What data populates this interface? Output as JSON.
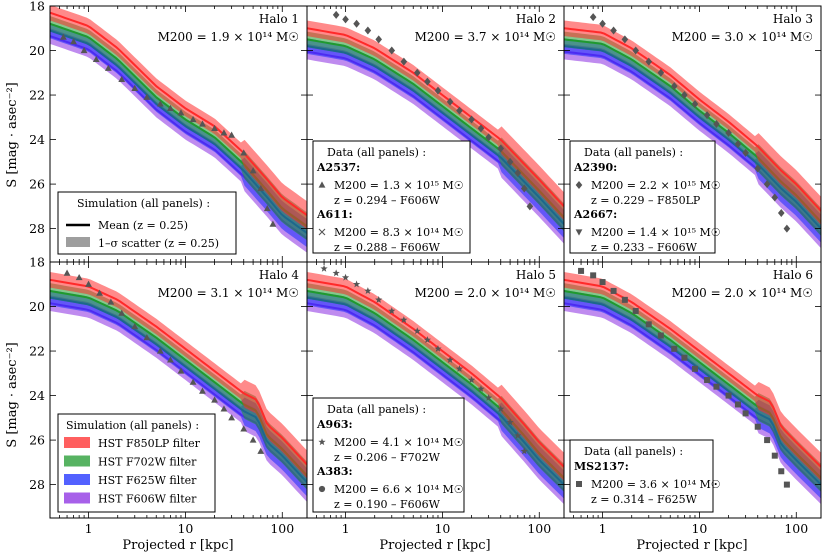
{
  "figure": {
    "xlabel": "Projected r [kpc]",
    "ylabel": "S [mag · asec⁻²]"
  },
  "axes": {
    "xscale": "log",
    "xlim": [
      0.4,
      180
    ],
    "ylim": [
      29.5,
      18
    ],
    "x_ticks": [
      1,
      10,
      100
    ],
    "x_tick_labels": [
      "1",
      "10",
      "100"
    ],
    "y_ticks": [
      18,
      20,
      22,
      24,
      26,
      28
    ],
    "y_tick_labels": [
      "18",
      "20",
      "22",
      "24",
      "26",
      "28"
    ]
  },
  "colors": {
    "F850LP": "#ff2a2a",
    "F702W": "#1f9a2e",
    "F625W": "#1a2cff",
    "F606W": "#8a2be2",
    "marker": "#555555"
  },
  "simulation_offsets": {
    "F850LP": 0.0,
    "F702W": 0.5,
    "F625W": 0.8,
    "F606W": 1.05
  },
  "chart_data": [
    {
      "type": "line",
      "halo_label": "Halo 1",
      "mass_label": "M200 = 1.9 × 10¹⁴ M☉",
      "sim_F850LP": [
        [
          0.4,
          18.3
        ],
        [
          1,
          18.9
        ],
        [
          2,
          19.9
        ],
        [
          5,
          21.6
        ],
        [
          10,
          22.6
        ],
        [
          20,
          23.4
        ],
        [
          40,
          24.6
        ],
        [
          70,
          25.8
        ],
        [
          100,
          26.6
        ],
        [
          180,
          27.4
        ]
      ],
      "scatter_half_width": 0.35,
      "markers": [
        {
          "x": 0.55,
          "y": 19.4
        },
        {
          "x": 0.7,
          "y": 19.6
        },
        {
          "x": 0.9,
          "y": 20.0
        },
        {
          "x": 1.2,
          "y": 20.4
        },
        {
          "x": 1.6,
          "y": 20.8
        },
        {
          "x": 2.2,
          "y": 21.3
        },
        {
          "x": 3,
          "y": 21.7
        },
        {
          "x": 4,
          "y": 22.1
        },
        {
          "x": 5.5,
          "y": 22.4
        },
        {
          "x": 7,
          "y": 22.6
        },
        {
          "x": 9,
          "y": 22.8
        },
        {
          "x": 12,
          "y": 23.1
        },
        {
          "x": 15,
          "y": 23.3
        },
        {
          "x": 20,
          "y": 23.5
        },
        {
          "x": 25,
          "y": 23.7
        },
        {
          "x": 30,
          "y": 23.8
        },
        {
          "x": 40,
          "y": 24.6
        },
        {
          "x": 50,
          "y": 25.4
        },
        {
          "x": 60,
          "y": 26.2
        },
        {
          "x": 70,
          "y": 27.1
        },
        {
          "x": 80,
          "y": 27.8
        }
      ]
    },
    {
      "type": "line",
      "halo_label": "Halo 2",
      "mass_label": "M200 = 3.7 × 10¹⁴ M☉",
      "sim_F850LP": [
        [
          0.4,
          19.0
        ],
        [
          1,
          19.3
        ],
        [
          2,
          19.9
        ],
        [
          5,
          21.0
        ],
        [
          10,
          22.0
        ],
        [
          20,
          23.0
        ],
        [
          40,
          24.0
        ],
        [
          70,
          25.1
        ],
        [
          100,
          25.8
        ],
        [
          180,
          27.0
        ]
      ],
      "scatter_half_width": 0.35,
      "markers": [
        {
          "x": 0.8,
          "y": 18.4
        },
        {
          "x": 1,
          "y": 18.6
        },
        {
          "x": 1.3,
          "y": 18.8
        },
        {
          "x": 1.7,
          "y": 19.1
        },
        {
          "x": 2.2,
          "y": 19.5
        },
        {
          "x": 3,
          "y": 20.0
        },
        {
          "x": 4,
          "y": 20.5
        },
        {
          "x": 5.5,
          "y": 21.0
        },
        {
          "x": 7,
          "y": 21.4
        },
        {
          "x": 9,
          "y": 21.8
        },
        {
          "x": 12,
          "y": 22.3
        },
        {
          "x": 15,
          "y": 22.7
        },
        {
          "x": 20,
          "y": 23.1
        },
        {
          "x": 25,
          "y": 23.5
        },
        {
          "x": 30,
          "y": 23.9
        },
        {
          "x": 40,
          "y": 24.4
        },
        {
          "x": 50,
          "y": 25.0
        },
        {
          "x": 60,
          "y": 25.5
        },
        {
          "x": 70,
          "y": 26.2
        },
        {
          "x": 80,
          "y": 27.0
        }
      ]
    },
    {
      "type": "line",
      "halo_label": "Halo 3",
      "mass_label": "M200 = 3.0 × 10¹⁴ M☉",
      "sim_F850LP": [
        [
          0.4,
          19.0
        ],
        [
          1,
          19.2
        ],
        [
          2,
          19.9
        ],
        [
          5,
          21.1
        ],
        [
          10,
          22.2
        ],
        [
          20,
          23.2
        ],
        [
          40,
          24.3
        ],
        [
          70,
          25.4
        ],
        [
          100,
          26.0
        ],
        [
          180,
          27.2
        ]
      ],
      "scatter_half_width": 0.35,
      "markers": [
        {
          "x": 0.8,
          "y": 18.5
        },
        {
          "x": 1,
          "y": 18.8
        },
        {
          "x": 1.3,
          "y": 19.1
        },
        {
          "x": 1.7,
          "y": 19.5
        },
        {
          "x": 2.2,
          "y": 20.0
        },
        {
          "x": 3,
          "y": 20.5
        },
        {
          "x": 4,
          "y": 21.0
        },
        {
          "x": 5.5,
          "y": 21.6
        },
        {
          "x": 7,
          "y": 22.0
        },
        {
          "x": 9,
          "y": 22.4
        },
        {
          "x": 12,
          "y": 22.9
        },
        {
          "x": 15,
          "y": 23.3
        },
        {
          "x": 20,
          "y": 23.7
        },
        {
          "x": 25,
          "y": 24.2
        },
        {
          "x": 30,
          "y": 24.6
        },
        {
          "x": 40,
          "y": 25.3
        },
        {
          "x": 50,
          "y": 26.0
        },
        {
          "x": 60,
          "y": 26.6
        },
        {
          "x": 70,
          "y": 27.3
        },
        {
          "x": 80,
          "y": 28.0
        }
      ]
    },
    {
      "type": "line",
      "halo_label": "Halo 4",
      "mass_label": "M200 = 3.1 × 10¹⁴ M☉",
      "sim_F850LP": [
        [
          0.4,
          18.8
        ],
        [
          1,
          19.1
        ],
        [
          2,
          19.7
        ],
        [
          5,
          20.9
        ],
        [
          10,
          21.9
        ],
        [
          20,
          22.9
        ],
        [
          40,
          23.9
        ],
        [
          55,
          24.2
        ],
        [
          70,
          25.3
        ],
        [
          100,
          25.9
        ],
        [
          180,
          27.1
        ]
      ],
      "scatter_half_width": 0.35,
      "markers": [
        {
          "x": 0.6,
          "y": 18.5
        },
        {
          "x": 0.8,
          "y": 18.7
        },
        {
          "x": 1,
          "y": 19.0
        },
        {
          "x": 1.3,
          "y": 19.4
        },
        {
          "x": 1.7,
          "y": 19.8
        },
        {
          "x": 2.2,
          "y": 20.3
        },
        {
          "x": 3,
          "y": 20.9
        },
        {
          "x": 4,
          "y": 21.4
        },
        {
          "x": 5.5,
          "y": 22.0
        },
        {
          "x": 7,
          "y": 22.4
        },
        {
          "x": 9,
          "y": 22.9
        },
        {
          "x": 12,
          "y": 23.4
        },
        {
          "x": 15,
          "y": 23.8
        },
        {
          "x": 20,
          "y": 24.2
        },
        {
          "x": 25,
          "y": 24.6
        },
        {
          "x": 30,
          "y": 25.0
        },
        {
          "x": 40,
          "y": 25.5
        },
        {
          "x": 50,
          "y": 26.0
        },
        {
          "x": 60,
          "y": 26.5
        }
      ]
    },
    {
      "type": "line",
      "halo_label": "Halo 5",
      "mass_label": "M200 = 2.0 × 10¹⁴ M☉",
      "sim_F850LP": [
        [
          0.4,
          18.8
        ],
        [
          1,
          19.1
        ],
        [
          2,
          19.8
        ],
        [
          5,
          21.0
        ],
        [
          10,
          22.0
        ],
        [
          20,
          23.0
        ],
        [
          40,
          24.1
        ],
        [
          70,
          25.3
        ],
        [
          100,
          26.1
        ],
        [
          180,
          27.2
        ]
      ],
      "scatter_half_width": 0.35,
      "markers": [
        {
          "x": 0.6,
          "y": 18.3
        },
        {
          "x": 0.8,
          "y": 18.5
        },
        {
          "x": 1,
          "y": 18.7
        },
        {
          "x": 1.3,
          "y": 19.0
        },
        {
          "x": 1.7,
          "y": 19.3
        },
        {
          "x": 2.2,
          "y": 19.7
        },
        {
          "x": 3,
          "y": 20.2
        },
        {
          "x": 4,
          "y": 20.6
        },
        {
          "x": 5.5,
          "y": 21.1
        },
        {
          "x": 7,
          "y": 21.5
        },
        {
          "x": 9,
          "y": 21.9
        },
        {
          "x": 12,
          "y": 22.4
        },
        {
          "x": 15,
          "y": 22.8
        },
        {
          "x": 20,
          "y": 23.3
        },
        {
          "x": 25,
          "y": 23.7
        },
        {
          "x": 30,
          "y": 24.1
        },
        {
          "x": 40,
          "y": 24.6
        },
        {
          "x": 50,
          "y": 25.2
        },
        {
          "x": 60,
          "y": 25.8
        },
        {
          "x": 70,
          "y": 26.5
        }
      ]
    },
    {
      "type": "line",
      "halo_label": "Halo 6",
      "mass_label": "M200 = 2.0 × 10¹⁴ M☉",
      "sim_F850LP": [
        [
          0.4,
          18.8
        ],
        [
          1,
          19.1
        ],
        [
          2,
          19.8
        ],
        [
          5,
          21.0
        ],
        [
          10,
          22.0
        ],
        [
          20,
          23.0
        ],
        [
          40,
          24.0
        ],
        [
          55,
          24.3
        ],
        [
          70,
          25.4
        ],
        [
          100,
          26.1
        ],
        [
          180,
          27.2
        ]
      ],
      "scatter_half_width": 0.35,
      "markers": [
        {
          "x": 0.6,
          "y": 18.4
        },
        {
          "x": 0.8,
          "y": 18.6
        },
        {
          "x": 1,
          "y": 18.9
        },
        {
          "x": 1.3,
          "y": 19.3
        },
        {
          "x": 1.7,
          "y": 19.7
        },
        {
          "x": 2.2,
          "y": 20.2
        },
        {
          "x": 3,
          "y": 20.8
        },
        {
          "x": 4,
          "y": 21.3
        },
        {
          "x": 5.5,
          "y": 21.9
        },
        {
          "x": 7,
          "y": 22.3
        },
        {
          "x": 9,
          "y": 22.8
        },
        {
          "x": 12,
          "y": 23.3
        },
        {
          "x": 15,
          "y": 23.6
        },
        {
          "x": 20,
          "y": 24.0
        },
        {
          "x": 25,
          "y": 24.4
        },
        {
          "x": 30,
          "y": 24.8
        },
        {
          "x": 40,
          "y": 25.4
        },
        {
          "x": 50,
          "y": 26.0
        },
        {
          "x": 60,
          "y": 26.7
        },
        {
          "x": 70,
          "y": 27.4
        },
        {
          "x": 80,
          "y": 28.0
        }
      ]
    }
  ],
  "legend_sim_mean": {
    "title": "Simulation (all panels) :",
    "mean": "Mean (z = 0.25)",
    "scatter": "1–σ scatter (z = 0.25)"
  },
  "legend_filters": {
    "title": "Simulation (all panels) :",
    "items": [
      "HST F850LP filter",
      "HST F702W filter",
      "HST F625W filter",
      "HST F606W filter"
    ]
  },
  "data_legends": [
    {
      "title": "Data (all panels) :",
      "clusters": [
        {
          "name": "A2537:",
          "mass": "M200 = 1.3 × 10¹⁵ M☉",
          "zline": "z = 0.294  –  F606W",
          "marker": "triangle-up"
        },
        {
          "name": "A611:",
          "mass": "M200 = 8.3 × 10¹⁴ M☉",
          "zline": "z = 0.288  –  F606W",
          "marker": "cross"
        }
      ]
    },
    {
      "title": "Data (all panels) :",
      "clusters": [
        {
          "name": "A2390:",
          "mass": "M200 = 2.2 × 10¹⁵ M☉",
          "zline": "z = 0.229  –  F850LP",
          "marker": "diamond"
        },
        {
          "name": "A2667:",
          "mass": "M200 = 1.4 × 10¹⁵ M☉",
          "zline": "z = 0.233  –  F606W",
          "marker": "triangle-down"
        }
      ]
    },
    {
      "title": "Data (all panels) :",
      "clusters": [
        {
          "name": "A963:",
          "mass": "M200 = 4.1 × 10¹⁴ M☉",
          "zline": "z = 0.206  –  F702W",
          "marker": "star"
        },
        {
          "name": "A383:",
          "mass": "M200 = 6.6 × 10¹⁴ M☉",
          "zline": "z = 0.190  –  F606W",
          "marker": "circle"
        }
      ]
    },
    {
      "title": "Data (all panels) :",
      "clusters": [
        {
          "name": "MS2137:",
          "mass": "M200 = 3.6 × 10¹⁴ M☉",
          "zline": "z = 0.314  –  F625W",
          "marker": "square"
        }
      ]
    }
  ]
}
